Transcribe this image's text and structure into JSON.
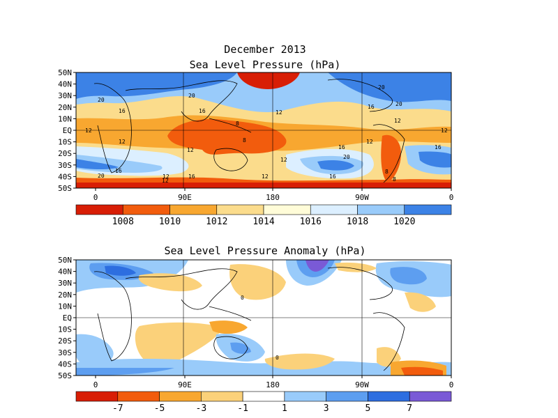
{
  "titles": {
    "main": "December 2013",
    "top_panel": "Sea Level Pressure (hPa)",
    "bottom_panel": "Sea Level Pressure Anomaly (hPa)"
  },
  "lat_labels": [
    "50N",
    "40N",
    "30N",
    "20N",
    "10N",
    "EQ",
    "10S",
    "20S",
    "30S",
    "40S",
    "50S"
  ],
  "lon_labels": [
    "0",
    "90E",
    "180",
    "90W",
    "0"
  ],
  "top_colorbar": {
    "labels": [
      "1008",
      "1010",
      "1012",
      "1014",
      "1016",
      "1018",
      "1020"
    ],
    "colors": [
      "#d81e05",
      "#f25c0d",
      "#f8a730",
      "#fbdc8c",
      "#fffcd8",
      "#dcefff",
      "#99cbfa",
      "#3c82e6"
    ]
  },
  "bottom_colorbar": {
    "labels": [
      "-7",
      "-5",
      "-3",
      "-1",
      "1",
      "3",
      "5",
      "7"
    ],
    "colors": [
      "#d81e05",
      "#f25c0d",
      "#f8a730",
      "#fbd17a",
      "#ffffff",
      "#99cbfa",
      "#5d9ef0",
      "#2d6ee0",
      "#7a5ad6"
    ]
  },
  "top_contour_labels": [
    "20",
    "16",
    "12",
    "12",
    "16",
    "20",
    "12",
    "8",
    "8",
    "12",
    "12",
    "16",
    "20",
    "16",
    "12",
    "16",
    "12",
    "20",
    "16",
    "20",
    "12",
    "12",
    "12",
    "16",
    "20",
    "16",
    "8",
    "8",
    "12"
  ],
  "bottom_contour_labels": [
    "0",
    "0"
  ]
}
